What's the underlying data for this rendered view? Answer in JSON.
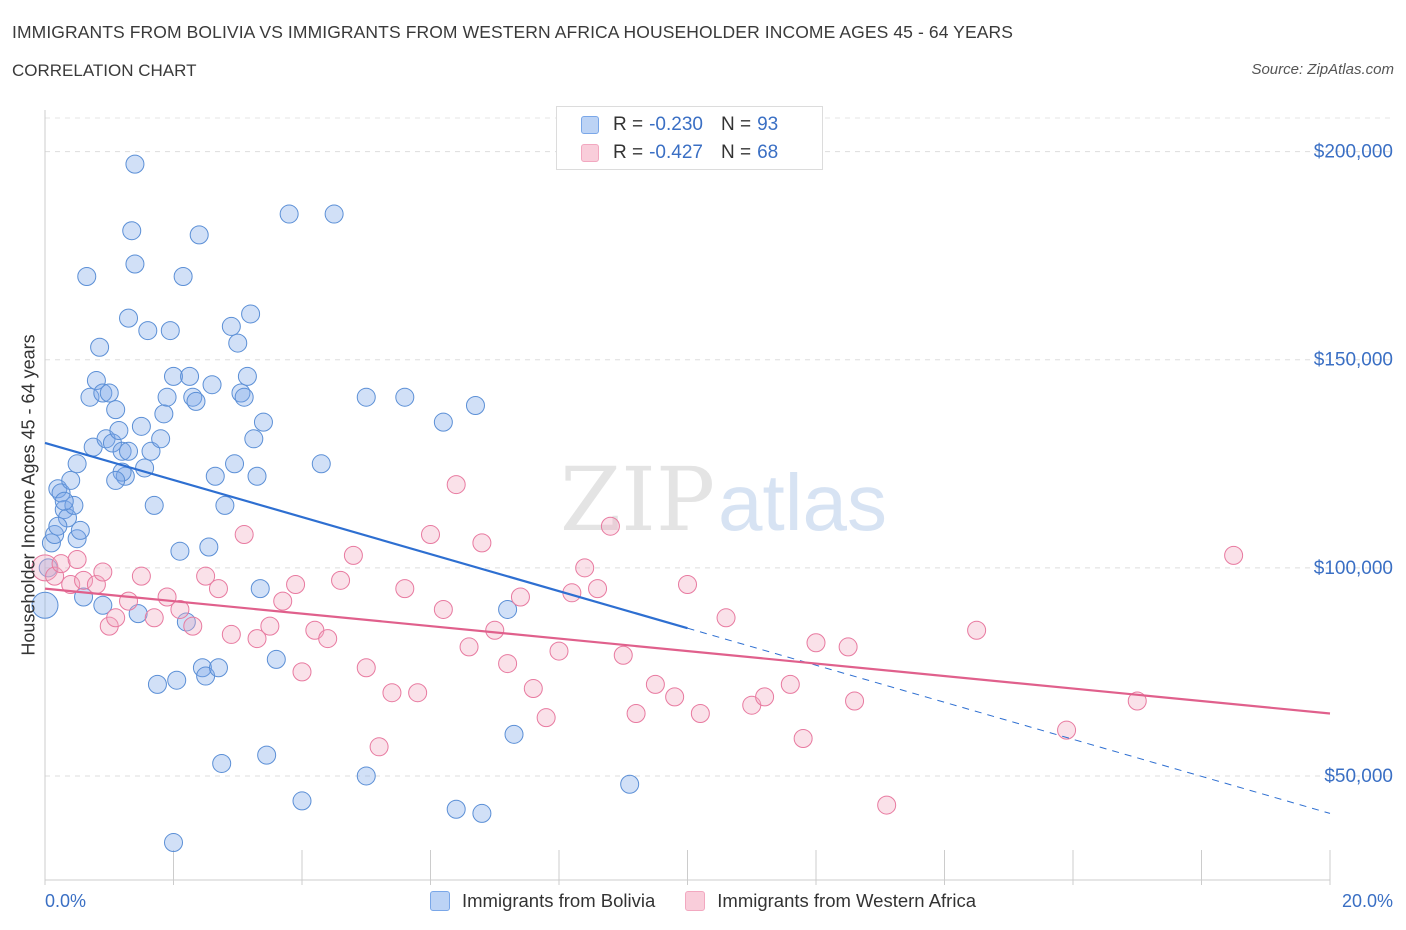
{
  "header": {
    "title": "IMMIGRANTS FROM BOLIVIA VS IMMIGRANTS FROM WESTERN AFRICA HOUSEHOLDER INCOME AGES 45 - 64 YEARS",
    "subtitle": "CORRELATION CHART",
    "source": "Source: ZipAtlas.com"
  },
  "watermark": "ZIPatlas",
  "legend": {
    "rows": [
      {
        "r_label": "R =",
        "r_value": "-0.230",
        "n_label": "N =",
        "n_value": "93"
      },
      {
        "r_label": "R =",
        "r_value": "-0.427",
        "n_label": "N =",
        "n_value": "68"
      }
    ]
  },
  "chart_data": {
    "type": "scatter",
    "title": "IMMIGRANTS FROM BOLIVIA VS IMMIGRANTS FROM WESTERN AFRICA HOUSEHOLDER INCOME AGES 45 - 64 YEARS",
    "xlabel": "",
    "ylabel": "Householder Income Ages 45 - 64 years",
    "xlim": [
      0,
      20
    ],
    "ylim": [
      25000,
      210000
    ],
    "x_tick_labels": [
      "0.0%",
      "20.0%"
    ],
    "y_tick_labels": [
      "$50,000",
      "$100,000",
      "$150,000",
      "$200,000"
    ],
    "y_ticks": [
      50000,
      100000,
      150000,
      200000
    ],
    "grid": true,
    "legend_position": "bottom",
    "series": [
      {
        "name": "Immigrants from Bolivia",
        "color": "#7aa7e8",
        "stroke": "#5b8fd6",
        "trend": {
          "x0": 0,
          "y0": 130000,
          "x1": 10,
          "y1": 85500,
          "dashed_to_x": 20,
          "dashed_to_y": 41000,
          "color": "#2e6fd1"
        },
        "points": [
          [
            0.0,
            91000
          ],
          [
            0.05,
            100000
          ],
          [
            0.1,
            106000
          ],
          [
            0.15,
            108000
          ],
          [
            0.2,
            119000
          ],
          [
            0.25,
            118000
          ],
          [
            0.3,
            114000
          ],
          [
            0.35,
            112000
          ],
          [
            0.4,
            121000
          ],
          [
            0.45,
            115000
          ],
          [
            0.5,
            107000
          ],
          [
            0.55,
            109000
          ],
          [
            0.6,
            93000
          ],
          [
            0.65,
            170000
          ],
          [
            0.7,
            141000
          ],
          [
            0.75,
            129000
          ],
          [
            0.8,
            145000
          ],
          [
            0.85,
            153000
          ],
          [
            0.9,
            142000
          ],
          [
            0.95,
            131000
          ],
          [
            1.0,
            142000
          ],
          [
            1.05,
            130000
          ],
          [
            1.1,
            138000
          ],
          [
            1.15,
            133000
          ],
          [
            1.2,
            128000
          ],
          [
            1.25,
            122000
          ],
          [
            1.3,
            160000
          ],
          [
            1.35,
            181000
          ],
          [
            1.4,
            173000
          ],
          [
            1.45,
            89000
          ],
          [
            1.5,
            134000
          ],
          [
            1.55,
            124000
          ],
          [
            1.6,
            157000
          ],
          [
            1.65,
            128000
          ],
          [
            1.7,
            115000
          ],
          [
            1.75,
            72000
          ],
          [
            1.8,
            131000
          ],
          [
            1.85,
            137000
          ],
          [
            1.9,
            141000
          ],
          [
            1.95,
            157000
          ],
          [
            2.0,
            146000
          ],
          [
            2.05,
            73000
          ],
          [
            2.1,
            104000
          ],
          [
            2.15,
            170000
          ],
          [
            2.2,
            87000
          ],
          [
            2.25,
            146000
          ],
          [
            2.3,
            141000
          ],
          [
            2.35,
            140000
          ],
          [
            2.4,
            180000
          ],
          [
            2.45,
            76000
          ],
          [
            2.5,
            74000
          ],
          [
            2.55,
            105000
          ],
          [
            2.6,
            144000
          ],
          [
            2.65,
            122000
          ],
          [
            2.7,
            76000
          ],
          [
            2.75,
            53000
          ],
          [
            2.8,
            115000
          ],
          [
            2.9,
            158000
          ],
          [
            2.95,
            125000
          ],
          [
            3.0,
            154000
          ],
          [
            3.05,
            142000
          ],
          [
            3.1,
            141000
          ],
          [
            3.15,
            146000
          ],
          [
            3.2,
            161000
          ],
          [
            3.25,
            131000
          ],
          [
            3.3,
            122000
          ],
          [
            3.35,
            95000
          ],
          [
            3.4,
            135000
          ],
          [
            3.45,
            55000
          ],
          [
            3.6,
            78000
          ],
          [
            3.8,
            185000
          ],
          [
            4.0,
            44000
          ],
          [
            4.3,
            125000
          ],
          [
            4.5,
            185000
          ],
          [
            5.0,
            141000
          ],
          [
            5.0,
            50000
          ],
          [
            5.6,
            141000
          ],
          [
            6.2,
            135000
          ],
          [
            6.4,
            42000
          ],
          [
            6.7,
            139000
          ],
          [
            6.8,
            41000
          ],
          [
            7.2,
            90000
          ],
          [
            7.3,
            60000
          ],
          [
            9.1,
            48000
          ],
          [
            1.4,
            197000
          ],
          [
            1.3,
            128000
          ],
          [
            1.2,
            123000
          ],
          [
            1.1,
            121000
          ],
          [
            2.0,
            34000
          ],
          [
            0.5,
            125000
          ],
          [
            0.3,
            116000
          ],
          [
            0.2,
            110000
          ],
          [
            0.9,
            91000
          ]
        ]
      },
      {
        "name": "Immigrants from Western Africa",
        "color": "#f2a8c0",
        "stroke": "#e87aa0",
        "trend": {
          "x0": 0,
          "y0": 95000,
          "x1": 20,
          "y1": 65000,
          "color": "#e0608c"
        },
        "points": [
          [
            0.0,
            100000
          ],
          [
            0.15,
            98000
          ],
          [
            0.25,
            101000
          ],
          [
            0.4,
            96000
          ],
          [
            0.5,
            102000
          ],
          [
            0.6,
            97000
          ],
          [
            0.8,
            96000
          ],
          [
            0.9,
            99000
          ],
          [
            1.0,
            86000
          ],
          [
            1.1,
            88000
          ],
          [
            1.3,
            92000
          ],
          [
            1.5,
            98000
          ],
          [
            1.7,
            88000
          ],
          [
            1.9,
            93000
          ],
          [
            2.1,
            90000
          ],
          [
            2.3,
            86000
          ],
          [
            2.5,
            98000
          ],
          [
            2.7,
            95000
          ],
          [
            2.9,
            84000
          ],
          [
            3.1,
            108000
          ],
          [
            3.3,
            83000
          ],
          [
            3.5,
            86000
          ],
          [
            3.7,
            92000
          ],
          [
            3.9,
            96000
          ],
          [
            4.0,
            75000
          ],
          [
            4.2,
            85000
          ],
          [
            4.4,
            83000
          ],
          [
            4.6,
            97000
          ],
          [
            4.8,
            103000
          ],
          [
            5.0,
            76000
          ],
          [
            5.2,
            57000
          ],
          [
            5.4,
            70000
          ],
          [
            5.6,
            95000
          ],
          [
            5.8,
            70000
          ],
          [
            6.0,
            108000
          ],
          [
            6.2,
            90000
          ],
          [
            6.4,
            120000
          ],
          [
            6.6,
            81000
          ],
          [
            6.8,
            106000
          ],
          [
            7.0,
            85000
          ],
          [
            7.2,
            77000
          ],
          [
            7.4,
            93000
          ],
          [
            7.6,
            71000
          ],
          [
            7.8,
            64000
          ],
          [
            8.0,
            80000
          ],
          [
            8.2,
            94000
          ],
          [
            8.4,
            100000
          ],
          [
            8.6,
            95000
          ],
          [
            8.8,
            110000
          ],
          [
            9.0,
            79000
          ],
          [
            9.2,
            65000
          ],
          [
            9.5,
            72000
          ],
          [
            9.8,
            69000
          ],
          [
            10.0,
            96000
          ],
          [
            10.2,
            65000
          ],
          [
            10.6,
            88000
          ],
          [
            11.0,
            67000
          ],
          [
            11.2,
            69000
          ],
          [
            11.6,
            72000
          ],
          [
            11.8,
            59000
          ],
          [
            12.0,
            82000
          ],
          [
            12.5,
            81000
          ],
          [
            12.6,
            68000
          ],
          [
            13.1,
            43000
          ],
          [
            14.5,
            85000
          ],
          [
            15.9,
            61000
          ],
          [
            17.0,
            68000
          ],
          [
            18.5,
            103000
          ]
        ]
      }
    ]
  },
  "bottom_legend": [
    "Immigrants from Bolivia",
    "Immigrants from Western Africa"
  ]
}
